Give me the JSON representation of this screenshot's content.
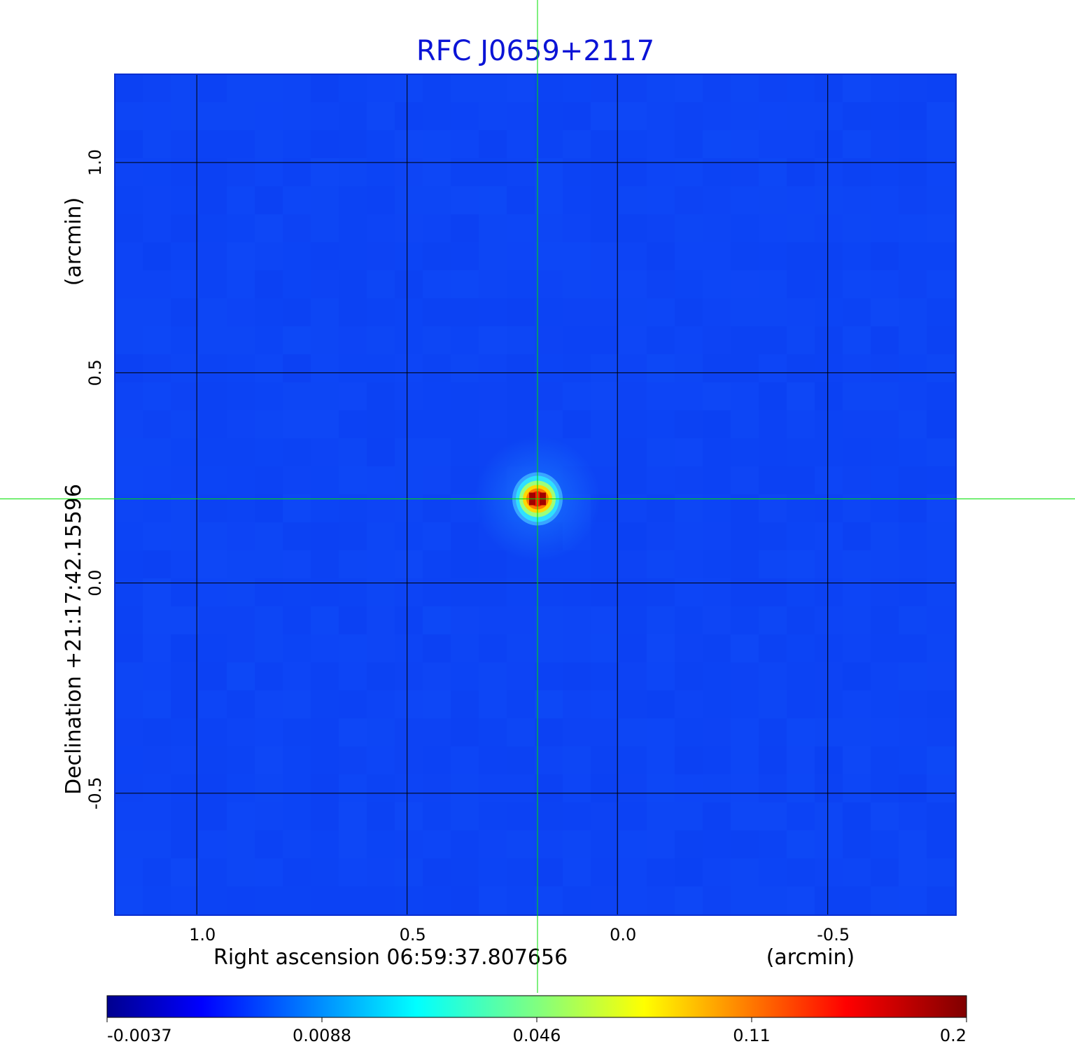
{
  "chart_data": {
    "type": "heatmap",
    "title": "RFC J0659+2117",
    "xlabel": "Right ascension  06:59:37.807656",
    "xunit": "(arcmin)",
    "ylabel": "Declination  +21:17:42.15596",
    "yunit": "(arcmin)",
    "x_ticks": [
      "1.0",
      "0.5",
      "0.0",
      "-0.5"
    ],
    "y_ticks": [
      "1.0",
      "0.5",
      "0.0",
      "-0.5"
    ],
    "x_tick_values": [
      1.0,
      0.5,
      0.0,
      -0.5
    ],
    "y_tick_values": [
      1.0,
      0.5,
      0.0,
      -0.5
    ],
    "xlim": [
      1.195,
      -0.805
    ],
    "ylim": [
      -0.79,
      1.21
    ],
    "grid": true,
    "crosshair": {
      "x": 0.19,
      "y": 0.2,
      "color": "#00e000"
    },
    "source_peak": {
      "x": 0.19,
      "y": 0.2,
      "value": 0.2
    },
    "background_value": 0.0,
    "colorbar": {
      "ticks": [
        "-0.0037",
        "0.0088",
        "0.046",
        "0.11",
        "0.2"
      ],
      "min": -0.0037,
      "max": 0.2,
      "colormap": "jet"
    }
  }
}
